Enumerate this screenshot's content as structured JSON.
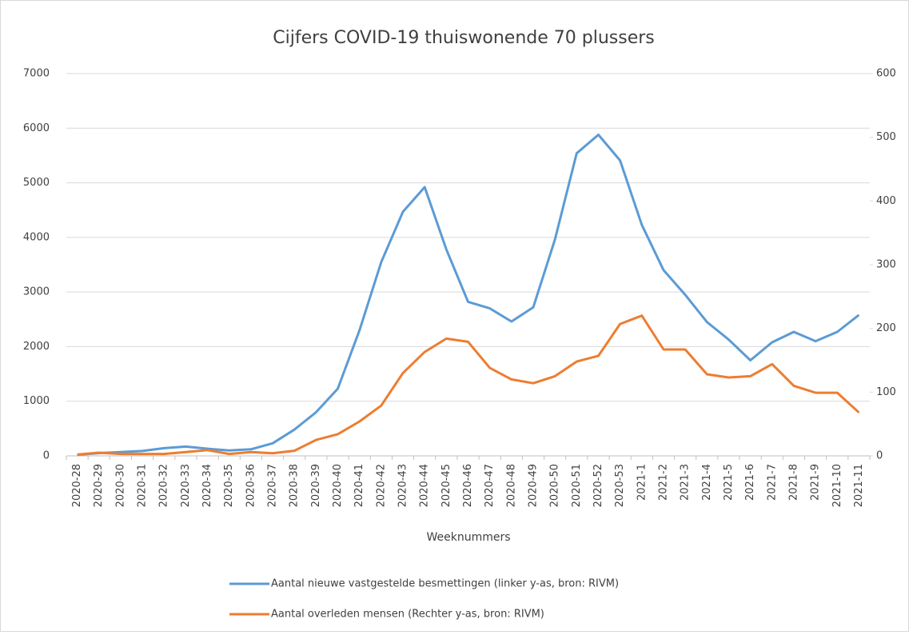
{
  "chart_data": {
    "type": "line",
    "title": "Cijfers COVID-19 thuiswonende 70 plussers",
    "x_label": "Weeknummers",
    "categories": [
      "2020-28",
      "2020-29",
      "2020-30",
      "2020-31",
      "2020-32",
      "2020-33",
      "2020-34",
      "2020-35",
      "2020-36",
      "2020-37",
      "2020-38",
      "2020-39",
      "2020-40",
      "2020-41",
      "2020-42",
      "2020-43",
      "2020-44",
      "2020-45",
      "2020-46",
      "2020-47",
      "2020-48",
      "2020-49",
      "2020-50",
      "2020-51",
      "2020-52",
      "2020-53",
      "2021-1",
      "2021-2",
      "2021-3",
      "2021-4",
      "2021-5",
      "2021-6",
      "2021-7",
      "2021-8",
      "2021-9",
      "2021-10",
      "2021-11"
    ],
    "series": [
      {
        "name": "Aantal nieuwe vastgestelde besmettingen (linker y-as, bron: RIVM)",
        "color": "#5b9bd5",
        "values": [
          20,
          50,
          70,
          90,
          140,
          170,
          130,
          100,
          120,
          230,
          480,
          800,
          1230,
          2300,
          3550,
          4470,
          4920,
          3780,
          2820,
          2700,
          2460,
          2720,
          3960,
          5540,
          5880,
          5410,
          4230,
          3400,
          2950,
          2450,
          2130,
          1750,
          2080,
          2270,
          2100,
          2270,
          2580
        ]
      },
      {
        "name": "Aantal overleden mensen (Rechter y-as, bron: RIVM)",
        "color": "#ed7d31",
        "axis": "y2",
        "values": [
          2,
          5,
          3,
          3,
          3,
          6,
          9,
          3,
          6,
          4,
          8,
          25,
          34,
          54,
          79,
          130,
          163,
          184,
          179,
          138,
          120,
          114,
          125,
          148,
          157,
          207,
          220,
          167,
          167,
          128,
          123,
          125,
          144,
          110,
          99,
          99,
          68
        ]
      }
    ],
    "ylim": [
      0,
      7000
    ],
    "yticks": [
      0,
      1000,
      2000,
      3000,
      4000,
      5000,
      6000,
      7000
    ],
    "y2lim": [
      0,
      600
    ],
    "y2ticks": [
      0,
      100,
      200,
      300,
      400,
      500,
      600
    ],
    "grid": true
  }
}
